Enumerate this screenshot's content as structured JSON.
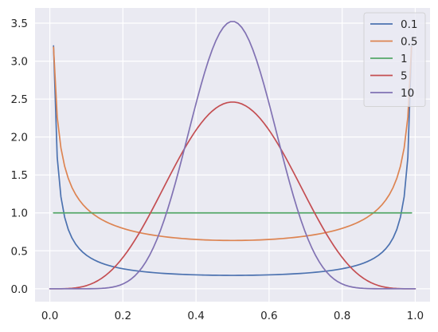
{
  "chart_data": {
    "type": "line",
    "title": "",
    "xlabel": "",
    "ylabel": "",
    "xlim": [
      -0.0405,
      1.0405
    ],
    "ylim": [
      -0.17,
      3.7
    ],
    "x_ticks": [
      0.0,
      0.2,
      0.4,
      0.6,
      0.8,
      1.0
    ],
    "x_tick_labels": [
      "0.0",
      "0.2",
      "0.4",
      "0.6",
      "0.8",
      "1.0"
    ],
    "y_ticks": [
      0.0,
      0.5,
      1.0,
      1.5,
      2.0,
      2.5,
      3.0,
      3.5
    ],
    "y_tick_labels": [
      "0.0",
      "0.5",
      "1.0",
      "1.5",
      "2.0",
      "2.5",
      "3.0",
      "3.5"
    ],
    "grid": true,
    "legend_position": "top-right",
    "x_domain": [
      0.0,
      1.0
    ],
    "sample_count": 100,
    "series": [
      {
        "name": "0.1",
        "color": "#4c72b0",
        "a": 0.1,
        "b": 0.1
      },
      {
        "name": "0.5",
        "color": "#dd8452",
        "a": 0.5,
        "b": 0.5
      },
      {
        "name": "1",
        "color": "#55a868",
        "a": 1,
        "b": 1
      },
      {
        "name": "5",
        "color": "#c44e52",
        "a": 5,
        "b": 5
      },
      {
        "name": "10",
        "color": "#8172b3",
        "a": 10,
        "b": 10
      }
    ]
  }
}
